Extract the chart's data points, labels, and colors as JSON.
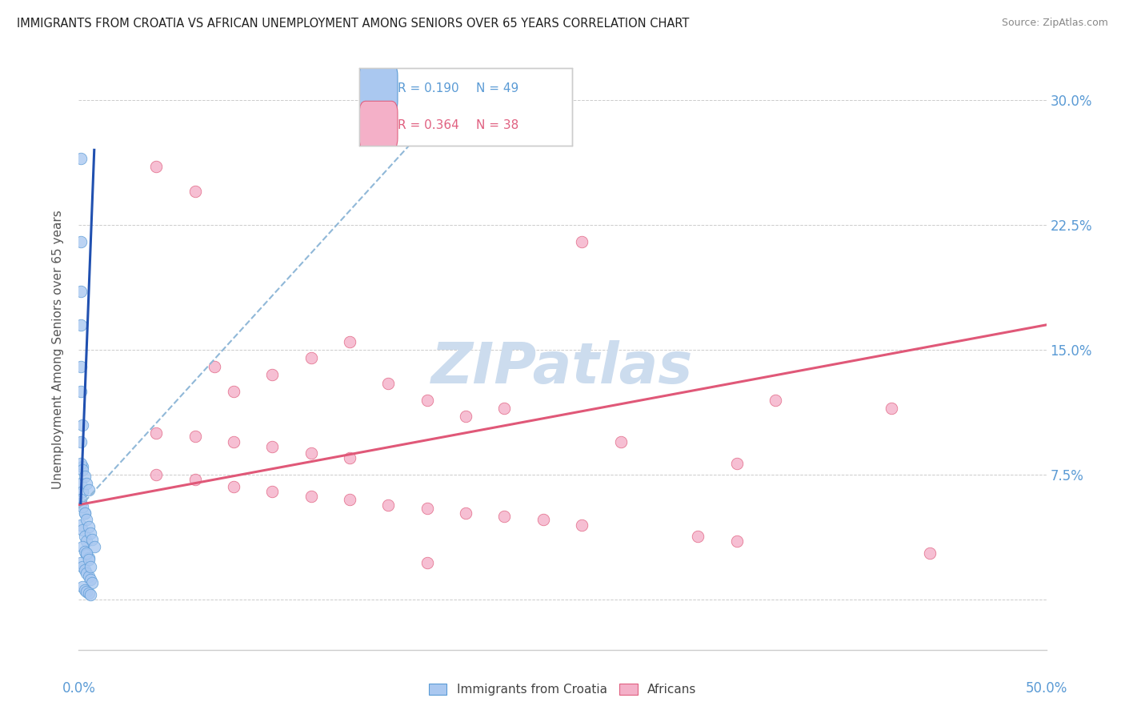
{
  "title": "IMMIGRANTS FROM CROATIA VS AFRICAN UNEMPLOYMENT AMONG SENIORS OVER 65 YEARS CORRELATION CHART",
  "source": "Source: ZipAtlas.com",
  "ylabel": "Unemployment Among Seniors over 65 years",
  "xlim": [
    0.0,
    0.5
  ],
  "ylim": [
    -0.03,
    0.33
  ],
  "blue_scatter": [
    [
      0.001,
      0.265
    ],
    [
      0.001,
      0.215
    ],
    [
      0.001,
      0.185
    ],
    [
      0.001,
      0.165
    ],
    [
      0.001,
      0.14
    ],
    [
      0.001,
      0.125
    ],
    [
      0.002,
      0.105
    ],
    [
      0.001,
      0.095
    ],
    [
      0.002,
      0.08
    ],
    [
      0.001,
      0.07
    ],
    [
      0.002,
      0.065
    ],
    [
      0.001,
      0.058
    ],
    [
      0.003,
      0.052
    ],
    [
      0.001,
      0.045
    ],
    [
      0.002,
      0.042
    ],
    [
      0.003,
      0.038
    ],
    [
      0.004,
      0.035
    ],
    [
      0.002,
      0.032
    ],
    [
      0.003,
      0.029
    ],
    [
      0.004,
      0.027
    ],
    [
      0.005,
      0.025
    ],
    [
      0.001,
      0.022
    ],
    [
      0.002,
      0.02
    ],
    [
      0.003,
      0.018
    ],
    [
      0.004,
      0.016
    ],
    [
      0.005,
      0.014
    ],
    [
      0.006,
      0.012
    ],
    [
      0.007,
      0.01
    ],
    [
      0.002,
      0.008
    ],
    [
      0.003,
      0.006
    ],
    [
      0.004,
      0.005
    ],
    [
      0.005,
      0.004
    ],
    [
      0.006,
      0.003
    ],
    [
      0.001,
      0.082
    ],
    [
      0.002,
      0.078
    ],
    [
      0.003,
      0.074
    ],
    [
      0.004,
      0.07
    ],
    [
      0.005,
      0.066
    ],
    [
      0.001,
      0.06
    ],
    [
      0.002,
      0.056
    ],
    [
      0.003,
      0.052
    ],
    [
      0.004,
      0.048
    ],
    [
      0.005,
      0.044
    ],
    [
      0.006,
      0.04
    ],
    [
      0.007,
      0.036
    ],
    [
      0.008,
      0.032
    ],
    [
      0.004,
      0.028
    ],
    [
      0.005,
      0.024
    ],
    [
      0.006,
      0.02
    ]
  ],
  "pink_scatter": [
    [
      0.04,
      0.26
    ],
    [
      0.06,
      0.245
    ],
    [
      0.26,
      0.215
    ],
    [
      0.14,
      0.155
    ],
    [
      0.12,
      0.145
    ],
    [
      0.07,
      0.14
    ],
    [
      0.1,
      0.135
    ],
    [
      0.16,
      0.13
    ],
    [
      0.08,
      0.125
    ],
    [
      0.18,
      0.12
    ],
    [
      0.22,
      0.115
    ],
    [
      0.2,
      0.11
    ],
    [
      0.04,
      0.1
    ],
    [
      0.06,
      0.098
    ],
    [
      0.08,
      0.095
    ],
    [
      0.1,
      0.092
    ],
    [
      0.12,
      0.088
    ],
    [
      0.14,
      0.085
    ],
    [
      0.36,
      0.12
    ],
    [
      0.42,
      0.115
    ],
    [
      0.28,
      0.095
    ],
    [
      0.34,
      0.082
    ],
    [
      0.04,
      0.075
    ],
    [
      0.06,
      0.072
    ],
    [
      0.08,
      0.068
    ],
    [
      0.1,
      0.065
    ],
    [
      0.12,
      0.062
    ],
    [
      0.14,
      0.06
    ],
    [
      0.16,
      0.057
    ],
    [
      0.18,
      0.055
    ],
    [
      0.2,
      0.052
    ],
    [
      0.22,
      0.05
    ],
    [
      0.24,
      0.048
    ],
    [
      0.26,
      0.045
    ],
    [
      0.18,
      0.022
    ],
    [
      0.32,
      0.038
    ],
    [
      0.34,
      0.035
    ],
    [
      0.44,
      0.028
    ]
  ],
  "blue_line_solid": {
    "x": [
      0.001,
      0.008
    ],
    "y": [
      0.058,
      0.27
    ]
  },
  "blue_line_dashed": {
    "x": [
      0.0,
      0.2
    ],
    "y": [
      0.055,
      0.31
    ]
  },
  "pink_line": {
    "x": [
      0.0,
      0.5
    ],
    "y": [
      0.057,
      0.165
    ]
  },
  "blue_scatter_color": "#aac8f0",
  "blue_edge_color": "#5b9bd5",
  "pink_scatter_color": "#f4b0c8",
  "pink_edge_color": "#e06080",
  "pink_line_color": "#e05878",
  "blue_solid_color": "#2050b0",
  "blue_dashed_color": "#90b8d8",
  "tick_label_color": "#5b9bd5",
  "ylabel_color": "#555555",
  "grid_color": "#cccccc",
  "watermark_color": "#ccdcee",
  "background_color": "#ffffff",
  "legend1_R_blue": "R = 0.190",
  "legend1_N_blue": "N = 49",
  "legend1_R_pink": "R = 0.364",
  "legend1_N_pink": "N = 38",
  "legend2_blue": "Immigrants from Croatia",
  "legend2_pink": "Africans"
}
